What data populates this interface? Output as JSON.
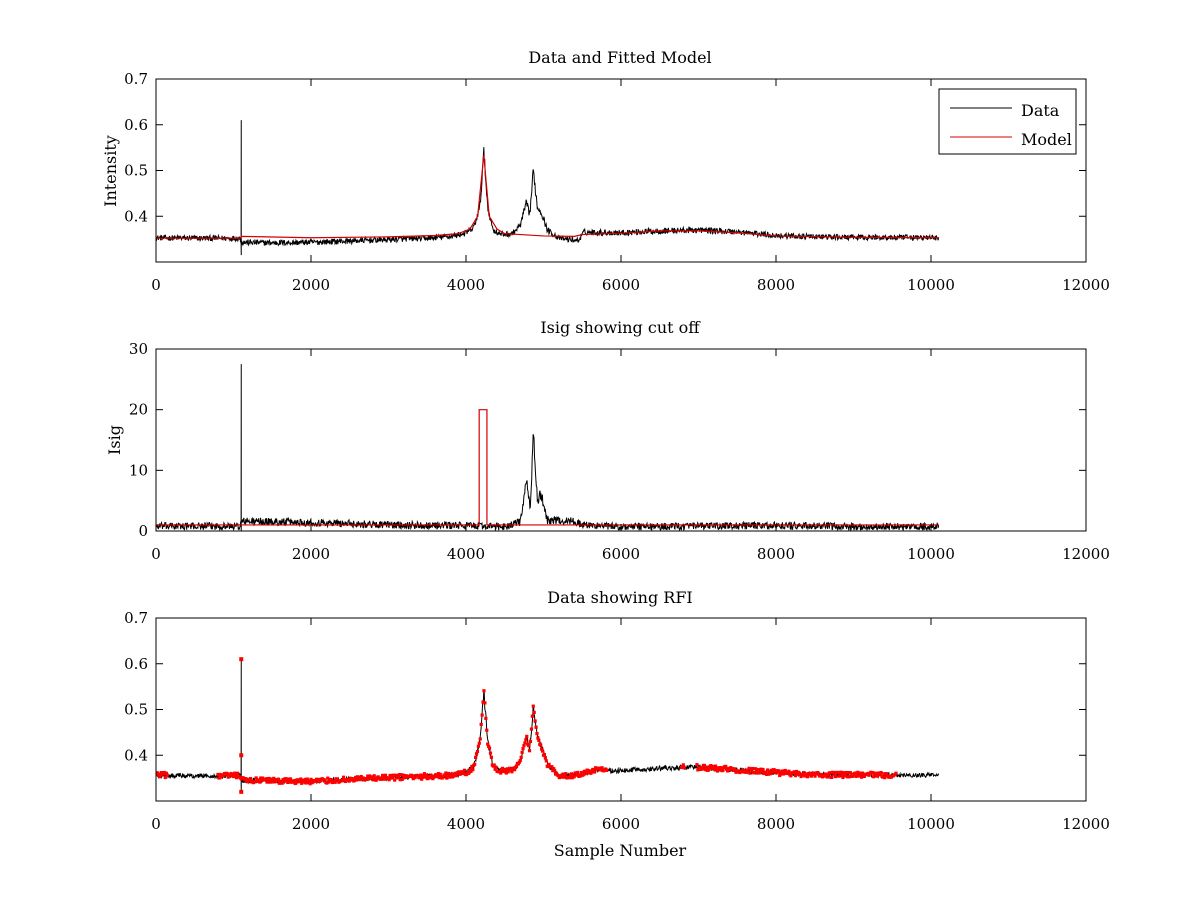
{
  "colors": {
    "data": "#000000",
    "model": "#d40000",
    "rfi": "#ff0000"
  },
  "chart_data": [
    {
      "type": "line",
      "title": "Data and Fitted Model",
      "xlabel": "",
      "ylabel": "Intensity",
      "xlim": [
        0,
        12000
      ],
      "ylim": [
        0.3,
        0.7
      ],
      "xticks": [
        0,
        2000,
        4000,
        6000,
        8000,
        10000,
        12000
      ],
      "yticks": [
        0.4,
        0.5,
        0.6,
        0.7
      ],
      "legend": {
        "position": "top-right",
        "entries": [
          "Data",
          "Model"
        ]
      },
      "series": [
        {
          "name": "Data",
          "style": "noisy-line",
          "noise": 0.006,
          "spike": {
            "x": 1100,
            "top": 0.61,
            "bottom": 0.315
          },
          "points": [
            [
              0,
              0.353
            ],
            [
              500,
              0.352
            ],
            [
              1080,
              0.352
            ],
            [
              1110,
              0.343
            ],
            [
              1500,
              0.342
            ],
            [
              2000,
              0.343
            ],
            [
              2500,
              0.346
            ],
            [
              3000,
              0.349
            ],
            [
              3500,
              0.352
            ],
            [
              3800,
              0.356
            ],
            [
              4000,
              0.363
            ],
            [
              4100,
              0.375
            ],
            [
              4180,
              0.42
            ],
            [
              4230,
              0.54
            ],
            [
              4280,
              0.42
            ],
            [
              4350,
              0.37
            ],
            [
              4450,
              0.36
            ],
            [
              4600,
              0.362
            ],
            [
              4700,
              0.38
            ],
            [
              4780,
              0.43
            ],
            [
              4820,
              0.4
            ],
            [
              4870,
              0.5
            ],
            [
              4920,
              0.42
            ],
            [
              4970,
              0.41
            ],
            [
              5050,
              0.37
            ],
            [
              5200,
              0.352
            ],
            [
              5450,
              0.347
            ],
            [
              5520,
              0.365
            ],
            [
              6000,
              0.364
            ],
            [
              6500,
              0.368
            ],
            [
              7000,
              0.37
            ],
            [
              7500,
              0.366
            ],
            [
              8000,
              0.358
            ],
            [
              8500,
              0.355
            ],
            [
              9000,
              0.354
            ],
            [
              10100,
              0.353
            ]
          ]
        },
        {
          "name": "Model",
          "style": "line",
          "points": [
            [
              0,
              0.352
            ],
            [
              1090,
              0.352
            ],
            [
              1100,
              0.356
            ],
            [
              2000,
              0.353
            ],
            [
              3000,
              0.355
            ],
            [
              3600,
              0.358
            ],
            [
              3900,
              0.362
            ],
            [
              4050,
              0.372
            ],
            [
              4150,
              0.4
            ],
            [
              4230,
              0.533
            ],
            [
              4300,
              0.4
            ],
            [
              4400,
              0.372
            ],
            [
              4500,
              0.362
            ],
            [
              5000,
              0.357
            ],
            [
              5400,
              0.356
            ],
            [
              5500,
              0.36
            ],
            [
              6000,
              0.363
            ],
            [
              6500,
              0.368
            ],
            [
              7000,
              0.368
            ],
            [
              7500,
              0.364
            ],
            [
              8000,
              0.357
            ],
            [
              9000,
              0.354
            ],
            [
              10100,
              0.353
            ]
          ]
        }
      ]
    },
    {
      "type": "line",
      "title": "Isig showing cut off",
      "xlabel": "",
      "ylabel": "Isig",
      "xlim": [
        0,
        12000
      ],
      "ylim": [
        0,
        30
      ],
      "xticks": [
        0,
        2000,
        4000,
        6000,
        8000,
        10000,
        12000
      ],
      "yticks": [
        0,
        10,
        20,
        30
      ],
      "series": [
        {
          "name": "Isig",
          "style": "noisy-line",
          "noise": 0.6,
          "spike": {
            "x": 1100,
            "top": 27.5,
            "bottom": 0
          },
          "points": [
            [
              0,
              0.8
            ],
            [
              1080,
              0.8
            ],
            [
              1110,
              1.6
            ],
            [
              2000,
              1.4
            ],
            [
              3000,
              1.0
            ],
            [
              4000,
              0.9
            ],
            [
              4500,
              0.7
            ],
            [
              4700,
              1.5
            ],
            [
              4780,
              8
            ],
            [
              4830,
              4
            ],
            [
              4870,
              16
            ],
            [
              4920,
              5
            ],
            [
              4970,
              6
            ],
            [
              5050,
              1.8
            ],
            [
              5400,
              1.6
            ],
            [
              5500,
              1.0
            ],
            [
              6000,
              0.7
            ],
            [
              7000,
              0.8
            ],
            [
              8000,
              0.9
            ],
            [
              9000,
              0.7
            ],
            [
              10100,
              0.7
            ]
          ]
        },
        {
          "name": "Cut off",
          "style": "line",
          "points": [
            [
              0,
              1.0
            ],
            [
              1100,
              1.0
            ],
            [
              2000,
              1.0
            ],
            [
              4000,
              1.0
            ],
            [
              4170,
              1.0
            ],
            [
              4170,
              20
            ],
            [
              4270,
              20
            ],
            [
              4270,
              1.0
            ],
            [
              6000,
              1.0
            ],
            [
              8000,
              1.0
            ],
            [
              10100,
              1.0
            ]
          ]
        }
      ]
    },
    {
      "type": "scatter",
      "title": "Data showing RFI",
      "xlabel": "Sample Number",
      "ylabel": "",
      "xlim": [
        0,
        12000
      ],
      "ylim": [
        0.3,
        0.7
      ],
      "xticks": [
        0,
        2000,
        4000,
        6000,
        8000,
        10000,
        12000
      ],
      "yticks": [
        0.4,
        0.5,
        0.6,
        0.7
      ],
      "series": [
        {
          "name": "Data",
          "style": "noisy-line",
          "noise": 0.005,
          "spike": {
            "x": 1100,
            "top": 0.61,
            "bottom": 0.32
          },
          "points": [
            [
              0,
              0.357
            ],
            [
              500,
              0.355
            ],
            [
              1080,
              0.355
            ],
            [
              1110,
              0.345
            ],
            [
              1500,
              0.344
            ],
            [
              2000,
              0.343
            ],
            [
              2500,
              0.347
            ],
            [
              3000,
              0.351
            ],
            [
              3500,
              0.354
            ],
            [
              3800,
              0.356
            ],
            [
              4000,
              0.362
            ],
            [
              4100,
              0.375
            ],
            [
              4180,
              0.43
            ],
            [
              4230,
              0.54
            ],
            [
              4280,
              0.43
            ],
            [
              4350,
              0.375
            ],
            [
              4450,
              0.365
            ],
            [
              4600,
              0.368
            ],
            [
              4700,
              0.385
            ],
            [
              4780,
              0.44
            ],
            [
              4820,
              0.41
            ],
            [
              4870,
              0.51
            ],
            [
              4920,
              0.44
            ],
            [
              4970,
              0.42
            ],
            [
              5050,
              0.38
            ],
            [
              5200,
              0.355
            ],
            [
              5450,
              0.357
            ],
            [
              5700,
              0.368
            ],
            [
              6000,
              0.366
            ],
            [
              6500,
              0.372
            ],
            [
              7000,
              0.374
            ],
            [
              7500,
              0.368
            ],
            [
              8000,
              0.362
            ],
            [
              8500,
              0.358
            ],
            [
              9000,
              0.357
            ],
            [
              10100,
              0.356
            ]
          ]
        },
        {
          "name": "RFI",
          "style": "markers",
          "ranges": [
            [
              0,
              150
            ],
            [
              800,
              5820
            ],
            [
              6780,
              6820
            ],
            [
              6980,
              9550
            ]
          ]
        }
      ]
    }
  ]
}
